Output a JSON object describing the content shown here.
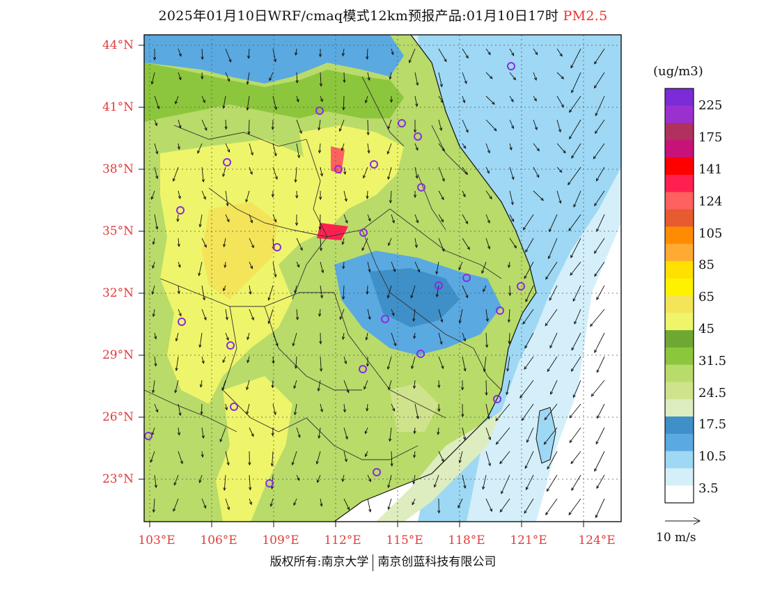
{
  "header": {
    "title": "2025年01月10日WRF/cmaq模式12km预报产品:01月10日17时",
    "species": "PM2.5"
  },
  "axes": {
    "lat_labels": [
      "44°N",
      "41°N",
      "38°N",
      "35°N",
      "32°N",
      "29°N",
      "26°N",
      "23°N"
    ],
    "lon_labels": [
      "103°E",
      "106°E",
      "109°E",
      "112°E",
      "115°E",
      "118°E",
      "121°E",
      "124°E"
    ]
  },
  "colorbar": {
    "unit": "(ug/m3)",
    "colors": [
      "#7b2bd8",
      "#9b30d0",
      "#b0305e",
      "#c8127a",
      "#ff0000",
      "#ff2050",
      "#ff6060",
      "#e85a30",
      "#ff8c00",
      "#ffaa33",
      "#ffe000",
      "#fff200",
      "#f4e45a",
      "#eef56a",
      "#6ea832",
      "#8cc63c",
      "#b9db6a",
      "#cfe38c",
      "#ddedc0",
      "#3f8fc8",
      "#5aa9e0",
      "#9ed8f4",
      "#d4effa",
      "#ffffff"
    ],
    "labels": [
      "225",
      "175",
      "141",
      "124",
      "105",
      "85",
      "65",
      "45",
      "31.5",
      "24.5",
      "17.5",
      "10.5",
      "3.5"
    ]
  },
  "wind": {
    "scale_label": "10 m/s"
  },
  "footer": {
    "left": "版权所有:南京大学",
    "right": "南京创蓝科技有限公司"
  }
}
